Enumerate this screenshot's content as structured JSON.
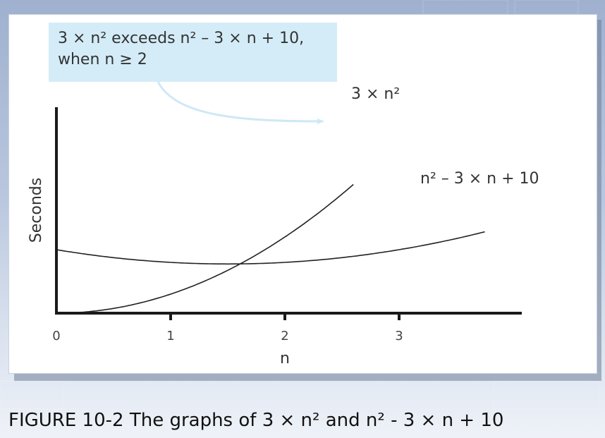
{
  "chart_data": {
    "type": "line",
    "title": "",
    "xlabel": "n",
    "ylabel": "Seconds",
    "xlim": [
      0,
      3.9
    ],
    "ylim": [
      0,
      36
    ],
    "x_ticks": [
      "0",
      "1",
      "2",
      "3"
    ],
    "grid": false,
    "series": [
      {
        "name": "3 × n²",
        "formula": "3*n^2",
        "color": "#222222",
        "x": [
          0,
          0.25,
          0.5,
          0.75,
          1.0,
          1.25,
          1.5,
          1.75,
          2.0,
          2.25,
          2.5,
          2.6
        ],
        "y": [
          0,
          0.19,
          0.75,
          1.69,
          3.0,
          4.69,
          6.75,
          9.19,
          12.0,
          15.19,
          18.75,
          20.28
        ]
      },
      {
        "name": "n² − 3 × n + 10",
        "formula": "n^2-3*n+10",
        "color": "#222222",
        "x": [
          0,
          0.5,
          1.0,
          1.5,
          2.0,
          2.5,
          3.0,
          3.5,
          3.8
        ],
        "y": [
          10.0,
          8.75,
          8.0,
          7.75,
          8.0,
          8.75,
          10.0,
          11.75,
          13.04
        ]
      }
    ],
    "annotation": {
      "line1": "3 × n² exceeds n² – 3 × n + 10,",
      "line2": "when n ≥ 2",
      "arrow_color": "#cfe8f6"
    }
  },
  "labels": {
    "curve_3n2": "3 × n²",
    "curve_poly": "n² – 3 × n + 10"
  },
  "caption": "FIGURE 10-2 The graphs of 3  × n² and n² -  3 × n + 10",
  "colors": {
    "callout_bg": "#d4ecf8",
    "axis": "#1a1a1a",
    "curve": "#222222"
  }
}
